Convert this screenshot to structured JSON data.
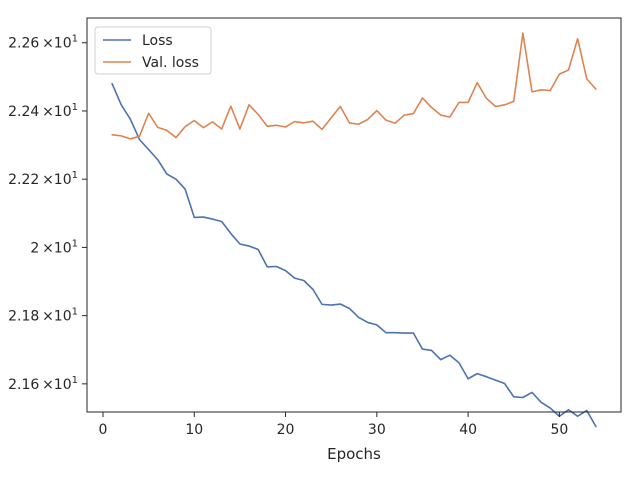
{
  "chart_data": {
    "type": "line",
    "xlabel": "Epochs",
    "ylabel": "",
    "xlim": [
      -1.75,
      56.75
    ],
    "ylim": [
      21.5175,
      22.6725
    ],
    "grid": false,
    "legend_position": "top-left",
    "x_ticks": [
      {
        "value": 0,
        "label": "0"
      },
      {
        "value": 10,
        "label": "10"
      },
      {
        "value": 20,
        "label": "20"
      },
      {
        "value": 30,
        "label": "30"
      },
      {
        "value": 40,
        "label": "40"
      },
      {
        "value": 50,
        "label": "50"
      }
    ],
    "y_ticks": [
      {
        "value": 21.6,
        "mantissa": "2.16",
        "suffix": "×10",
        "exp": "1"
      },
      {
        "value": 21.8,
        "mantissa": "2.18",
        "suffix": "×10",
        "exp": "1"
      },
      {
        "value": 22.0,
        "mantissa": "2",
        "suffix": "×10",
        "exp": "1"
      },
      {
        "value": 22.2,
        "mantissa": "2.22",
        "suffix": "×10",
        "exp": "1"
      },
      {
        "value": 22.4,
        "mantissa": "2.24",
        "suffix": "×10",
        "exp": "1"
      },
      {
        "value": 22.6,
        "mantissa": "2.26",
        "suffix": "×10",
        "exp": "1"
      }
    ],
    "x": [
      1,
      2,
      3,
      4,
      5,
      6,
      7,
      8,
      9,
      10,
      11,
      12,
      13,
      14,
      15,
      16,
      17,
      18,
      19,
      20,
      21,
      22,
      23,
      24,
      25,
      26,
      27,
      28,
      29,
      30,
      31,
      32,
      33,
      34,
      35,
      36,
      37,
      38,
      39,
      40,
      41,
      42,
      43,
      44,
      45,
      46,
      47,
      48,
      49,
      50,
      51,
      52,
      53,
      54
    ],
    "series": [
      {
        "name": "Loss",
        "color": "#4c72b0",
        "values": [
          22.48,
          22.418,
          22.376,
          22.316,
          22.287,
          22.257,
          22.215,
          22.2,
          22.171,
          22.088,
          22.089,
          22.083,
          22.076,
          22.041,
          22.01,
          22.004,
          21.994,
          21.943,
          21.944,
          21.932,
          21.91,
          21.903,
          21.877,
          21.833,
          21.831,
          21.834,
          21.821,
          21.795,
          21.78,
          21.773,
          21.75,
          21.75,
          21.749,
          21.749,
          21.702,
          21.698,
          21.671,
          21.684,
          21.662,
          21.615,
          21.63,
          21.621,
          21.611,
          21.601,
          21.562,
          21.56,
          21.575,
          21.546,
          21.529,
          21.505,
          21.524,
          21.505,
          21.522,
          21.475
        ]
      },
      {
        "name": "Val. loss",
        "color": "#dd8452",
        "values": [
          22.33,
          22.327,
          22.318,
          22.326,
          22.393,
          22.352,
          22.343,
          22.322,
          22.354,
          22.372,
          22.351,
          22.368,
          22.347,
          22.414,
          22.347,
          22.418,
          22.39,
          22.355,
          22.358,
          22.353,
          22.369,
          22.365,
          22.37,
          22.346,
          22.38,
          22.413,
          22.365,
          22.361,
          22.375,
          22.401,
          22.373,
          22.364,
          22.388,
          22.392,
          22.438,
          22.41,
          22.388,
          22.382,
          22.425,
          22.425,
          22.483,
          22.437,
          22.413,
          22.418,
          22.428,
          22.628,
          22.456,
          22.462,
          22.46,
          22.508,
          22.52,
          22.612,
          22.494,
          22.464
        ]
      }
    ]
  }
}
